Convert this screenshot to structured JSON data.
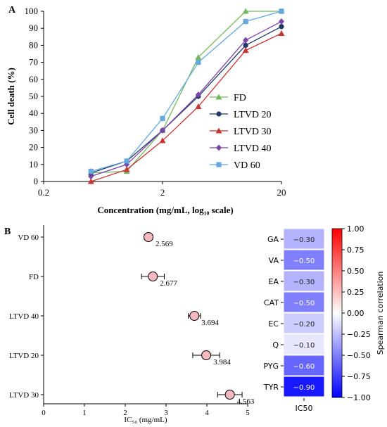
{
  "panel_a": {
    "label": "A",
    "chart_data": {
      "type": "line",
      "xscale": "log",
      "x": [
        0.5,
        1,
        2,
        4,
        10,
        20
      ],
      "xticks": [
        0.2,
        2,
        20
      ],
      "xtick_labels": [
        "0.2",
        "2",
        "20"
      ],
      "xlim": [
        0.2,
        20
      ],
      "ylim": [
        0,
        100
      ],
      "yticks": [
        0,
        10,
        20,
        30,
        40,
        50,
        60,
        70,
        80,
        90,
        100
      ],
      "xlabel": "Concentration (mg/mL, log₁₀ scale)",
      "ylabel": "Cell death (%)",
      "legend_position": "right",
      "series": [
        {
          "name": "FD",
          "color": "#74b85c",
          "marker": "triangle",
          "values": [
            5,
            6,
            30,
            73,
            100,
            100
          ]
        },
        {
          "name": "LTVD 20",
          "color": "#1f3868",
          "marker": "circle",
          "values": [
            5,
            12,
            30,
            50,
            80,
            91
          ]
        },
        {
          "name": "LTVD 30",
          "color": "#c93434",
          "marker": "triangle",
          "values": [
            0,
            7,
            24,
            44,
            77,
            87
          ]
        },
        {
          "name": "LTVD 40",
          "color": "#7a45a8",
          "marker": "diamond",
          "values": [
            3,
            10,
            30,
            51,
            83,
            94
          ]
        },
        {
          "name": "VD 60",
          "color": "#66a9dd",
          "marker": "square",
          "values": [
            6,
            12,
            37,
            70,
            94,
            100
          ]
        }
      ]
    }
  },
  "panel_b": {
    "label": "B",
    "forest": {
      "type": "scatter",
      "categories": [
        "VD 60",
        "FD",
        "LTVD 40",
        "LTVD 20",
        "LTVD 30"
      ],
      "values": [
        2.569,
        2.677,
        3.694,
        3.984,
        4.563
      ],
      "value_labels": [
        "2.569",
        "2.677",
        "3.694",
        "3.984",
        "4.563"
      ],
      "err": [
        0.1,
        0.28,
        0.15,
        0.33,
        0.3
      ],
      "xlim": [
        0,
        5
      ],
      "xticks": [
        0,
        1,
        2,
        3,
        4,
        5
      ],
      "xlabel": "IC₅₀ (mg/mL)",
      "marker_color": "#f6b9bf"
    },
    "heatmap": {
      "type": "heatmap",
      "rows": [
        "GA",
        "VA",
        "EA",
        "CAT",
        "EC",
        "Q",
        "PYG",
        "TYR"
      ],
      "column": "IC50",
      "values": [
        -0.3,
        -0.5,
        -0.3,
        -0.5,
        -0.2,
        -0.1,
        -0.6,
        -0.9
      ],
      "cell_labels": [
        "−0.30",
        "−0.50",
        "−0.30",
        "−0.50",
        "−0.20",
        "−0.10",
        "−0.60",
        "−0.90"
      ],
      "colorbar": {
        "label": "Spearman correlation",
        "range": [
          -1,
          1
        ],
        "ticks": [
          "1.00",
          "0.75",
          "0.50",
          "0.25",
          "0.00",
          "−0.25",
          "−0.50",
          "−0.75",
          "−1.00"
        ]
      }
    }
  }
}
